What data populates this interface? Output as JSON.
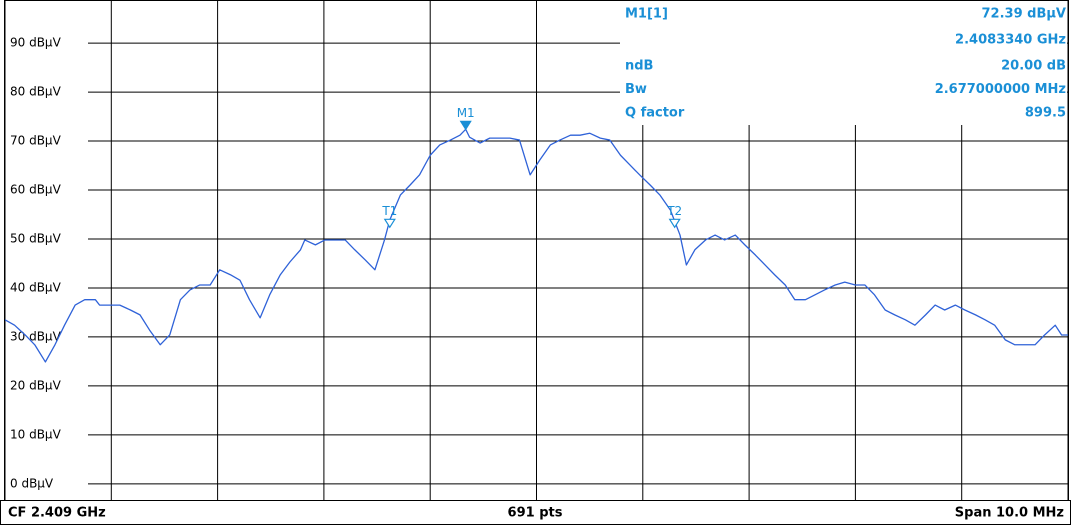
{
  "chart_data": {
    "type": "line",
    "color": "#2f62d8",
    "marker_color": "#1a8fd6",
    "xlim": [
      2.404,
      2.414
    ],
    "xticks": [
      2.404,
      2.405,
      2.406,
      2.407,
      2.408,
      2.409,
      2.41,
      2.411,
      2.412,
      2.413,
      2.414
    ],
    "ylim": [
      -3.3,
      98.6
    ],
    "yticks": [
      {
        "value": 0,
        "label": "0 dBµV"
      },
      {
        "value": 10,
        "label": "10 dBµV"
      },
      {
        "value": 20,
        "label": "20 dBµV"
      },
      {
        "value": 30,
        "label": "30 dBµV"
      },
      {
        "value": 40,
        "label": "40 dBµV"
      },
      {
        "value": 50,
        "label": "50 dBµV"
      },
      {
        "value": 60,
        "label": "60 dBµV"
      },
      {
        "value": 70,
        "label": "70 dBµV"
      },
      {
        "value": 80,
        "label": "80 dBµV"
      },
      {
        "value": 90,
        "label": "90 dBµV"
      }
    ],
    "grid": true,
    "x": [
      2.404,
      2.40409,
      2.40419,
      2.40428,
      2.40438,
      2.40447,
      2.40456,
      2.40466,
      2.40475,
      2.40485,
      2.40489,
      2.40499,
      2.40508,
      2.40518,
      2.40527,
      2.40536,
      2.40546,
      2.40555,
      2.40565,
      2.40574,
      2.40583,
      2.40593,
      2.40602,
      2.40612,
      2.40621,
      2.4063,
      2.4064,
      2.40649,
      2.40659,
      2.40668,
      2.40678,
      2.40682,
      2.40692,
      2.40701,
      2.4071,
      2.4072,
      2.40729,
      2.40739,
      2.40748,
      2.40757,
      2.40762,
      2.40772,
      2.40781,
      2.4079,
      2.408,
      2.40809,
      2.40819,
      2.40828,
      2.408334,
      2.40837,
      2.40847,
      2.40856,
      2.40866,
      2.40875,
      2.40884,
      2.40894,
      2.40903,
      2.40913,
      2.40922,
      2.40932,
      2.40941,
      2.4095,
      2.4096,
      2.40969,
      2.40979,
      2.40988,
      2.40997,
      2.41007,
      2.41016,
      2.41026,
      2.41035,
      2.41041,
      2.41049,
      2.41059,
      2.41068,
      2.41077,
      2.41087,
      2.41096,
      2.41106,
      2.41115,
      2.41124,
      2.41134,
      2.41143,
      2.41153,
      2.41162,
      2.41171,
      2.41181,
      2.4119,
      2.412,
      2.41209,
      2.41218,
      2.41228,
      2.41237,
      2.41247,
      2.41256,
      2.41266,
      2.41275,
      2.41284,
      2.41294,
      2.41303,
      2.41313,
      2.41322,
      2.41331,
      2.41341,
      2.4135,
      2.4136,
      2.41369,
      2.41378,
      2.41388,
      2.41394,
      2.414
    ],
    "values": [
      33.5,
      32.4,
      30.4,
      28.4,
      24.9,
      28.4,
      32.4,
      36.5,
      37.6,
      37.6,
      36.5,
      36.5,
      36.5,
      35.5,
      34.5,
      31.4,
      28.4,
      30.4,
      37.6,
      39.6,
      40.6,
      40.6,
      43.7,
      42.7,
      41.6,
      37.6,
      33.9,
      38.6,
      42.7,
      45.3,
      47.8,
      49.8,
      48.8,
      49.8,
      49.8,
      49.8,
      47.8,
      45.7,
      43.7,
      49.8,
      53.9,
      59.0,
      61.0,
      63.1,
      67.1,
      69.2,
      70.2,
      71.2,
      72.4,
      70.8,
      69.6,
      70.6,
      70.6,
      70.6,
      70.2,
      63.1,
      66.1,
      69.2,
      70.2,
      71.2,
      71.2,
      71.6,
      70.6,
      70.2,
      67.1,
      65.1,
      63.1,
      61.0,
      59.0,
      55.9,
      50.8,
      44.7,
      47.8,
      49.8,
      50.8,
      49.8,
      50.8,
      48.8,
      46.7,
      44.7,
      42.7,
      40.6,
      37.6,
      37.6,
      38.6,
      39.6,
      40.6,
      41.2,
      40.6,
      40.6,
      38.6,
      35.5,
      34.5,
      33.5,
      32.4,
      34.5,
      36.5,
      35.5,
      36.5,
      35.5,
      34.5,
      33.5,
      32.4,
      29.4,
      28.4,
      28.4,
      28.4,
      30.4,
      32.4,
      30.4,
      30.4
    ],
    "markers": [
      {
        "label": "M1",
        "x": 2.408334,
        "y": 72.39,
        "filled": true
      },
      {
        "label": "T1",
        "x": 2.40762,
        "y": 52.39,
        "filled": false
      },
      {
        "label": "T2",
        "x": 2.4103,
        "y": 52.39,
        "filled": false
      }
    ],
    "marker_info": {
      "title": "M1[1]",
      "level": "72.39 dBµV",
      "frequency": "2.4083340 GHz",
      "rows": [
        [
          "ndB",
          "20.00 dB"
        ],
        [
          "Bw",
          "2.677000000 MHz"
        ],
        [
          "Q factor",
          "899.5"
        ]
      ]
    },
    "footer": {
      "center": "CF 2.409 GHz",
      "points": "691 pts",
      "span": "Span 10.0 MHz"
    }
  }
}
